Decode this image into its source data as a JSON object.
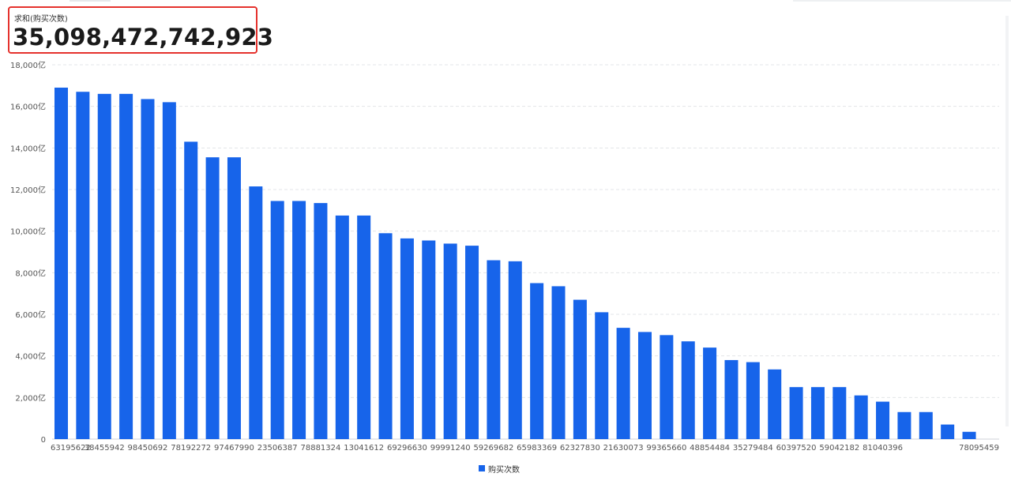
{
  "kpi": {
    "label": "求和(购买次数)",
    "value": "35,098,472,742,923"
  },
  "colors": {
    "bar": "#1764ea",
    "kpi_border": "#e5322d",
    "grid": "#e3e5e8",
    "axis_text": "#555555"
  },
  "chart_data": {
    "type": "bar",
    "ylabel_unit": "亿",
    "ylim": [
      0,
      18000
    ],
    "yticks": [
      0,
      2000,
      4000,
      6000,
      8000,
      10000,
      12000,
      14000,
      16000,
      18000
    ],
    "ytick_labels": [
      "0",
      "2,000亿",
      "4,000亿",
      "6,000亿",
      "8,000亿",
      "10,000亿",
      "12,000亿",
      "14,000亿",
      "16,000亿",
      "18,000亿"
    ],
    "grid": true,
    "legend_position": "bottom-center",
    "categories": [
      "63195622",
      "",
      "38455942",
      "",
      "98450692",
      "",
      "78192272",
      "",
      "97467990",
      "",
      "23506387",
      "",
      "78881324",
      "",
      "13041612",
      "",
      "69296630",
      "",
      "99991240",
      "",
      "59269682",
      "",
      "65983369",
      "",
      "62327830",
      "",
      "21630073",
      "",
      "99365660",
      "",
      "48854484",
      "",
      "35279484",
      "",
      "60397520",
      "",
      "59042182",
      "",
      "81040396",
      "",
      "",
      "",
      "78095459"
    ],
    "series": [
      {
        "name": "购买次数",
        "values": [
          16900,
          16700,
          16600,
          16600,
          16350,
          16200,
          14300,
          13550,
          13550,
          12150,
          11450,
          11450,
          11350,
          10750,
          10750,
          9900,
          9650,
          9550,
          9400,
          9300,
          8600,
          8550,
          7500,
          7350,
          6700,
          6100,
          5350,
          5150,
          5000,
          4700,
          4400,
          3800,
          3700,
          3350,
          2500,
          2500,
          2500,
          2100,
          1800,
          1300,
          1300,
          700,
          350
        ]
      }
    ]
  }
}
